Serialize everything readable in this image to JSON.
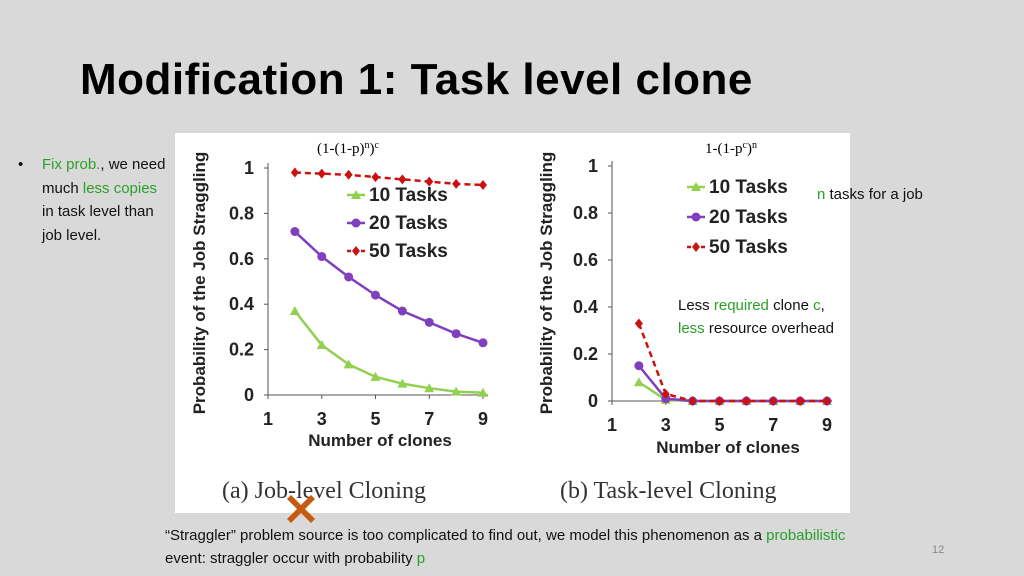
{
  "title": "Modification 1: Task level clone",
  "bullet": {
    "dot": "•",
    "fix_prob": "Fix prob.",
    "t1": ", we need much ",
    "less_copies": "less copies",
    "t2": " in task level than job level."
  },
  "formula_left": {
    "base": "(1-(1-p)",
    "inner_exp": "n",
    "close": ")",
    "outer_exp": "c"
  },
  "formula_right": {
    "base": "1-(1-p",
    "inner_exp": "c",
    "close": ")",
    "outer_exp": "n"
  },
  "note_n": {
    "n": "n",
    "rest": " tasks for a job"
  },
  "note_less": {
    "less": "Less ",
    "required": "required",
    "clone": " clone ",
    "c": "c",
    "comma": ",",
    "less2": "less",
    "rest": " resource overhead"
  },
  "footer": {
    "t1": "“Straggler” problem source is too complicated to find out, we model this phenomenon as a ",
    "prob": "probabilistic",
    "t2": " event: straggler occur with probability ",
    "p": "p"
  },
  "page_number": "12",
  "colors": {
    "green": "#2aa02a",
    "purple": "#7f3fbf",
    "red": "#cc1111",
    "light_green": "#92d050",
    "cross": "#c55a11"
  },
  "chart_data": [
    {
      "type": "line",
      "caption": "(a) Job-level Cloning",
      "xlabel": "Number of clones",
      "ylabel": "Probability of the Job Straggling",
      "xlim": [
        1,
        9
      ],
      "ylim": [
        0,
        1
      ],
      "xticks": [
        1,
        3,
        5,
        7,
        9
      ],
      "yticks": [
        0,
        0.2,
        0.4,
        0.6,
        0.8,
        1
      ],
      "ytick_labels": [
        "0",
        "0.2",
        "0.4",
        "0.6",
        "0.8",
        "1"
      ],
      "grid": false,
      "legend": "right",
      "x": [
        2,
        3,
        4,
        5,
        6,
        7,
        8,
        9
      ],
      "series": [
        {
          "name": "10 Tasks",
          "values": [
            0.37,
            0.22,
            0.135,
            0.08,
            0.05,
            0.03,
            0.015,
            0.01
          ]
        },
        {
          "name": "20 Tasks",
          "values": [
            0.72,
            0.61,
            0.52,
            0.44,
            0.37,
            0.32,
            0.27,
            0.23
          ]
        },
        {
          "name": "50 Tasks",
          "values": [
            0.98,
            0.975,
            0.97,
            0.96,
            0.95,
            0.94,
            0.93,
            0.925
          ]
        }
      ]
    },
    {
      "type": "line",
      "caption": "(b) Task-level Cloning",
      "xlabel": "Number of clones",
      "ylabel": "Probability of the Job Straggling",
      "xlim": [
        1,
        9
      ],
      "ylim": [
        0,
        1
      ],
      "xticks": [
        1,
        3,
        5,
        7,
        9
      ],
      "yticks": [
        0,
        0.2,
        0.4,
        0.6,
        0.8,
        1
      ],
      "ytick_labels": [
        "0",
        "0.2",
        "0.4",
        "0.6",
        "0.8",
        "1"
      ],
      "grid": false,
      "legend": "top-right",
      "x": [
        2,
        3,
        4,
        5,
        6,
        7,
        8,
        9
      ],
      "series": [
        {
          "name": "10 Tasks",
          "values": [
            0.08,
            0.005,
            0.0,
            0.0,
            0.0,
            0.0,
            0.0,
            0.0
          ]
        },
        {
          "name": "20 Tasks",
          "values": [
            0.15,
            0.01,
            0.0,
            0.0,
            0.0,
            0.0,
            0.0,
            0.0
          ]
        },
        {
          "name": "50 Tasks",
          "values": [
            0.33,
            0.03,
            0.0,
            0.0,
            0.0,
            0.0,
            0.0,
            0.0
          ]
        }
      ]
    }
  ]
}
